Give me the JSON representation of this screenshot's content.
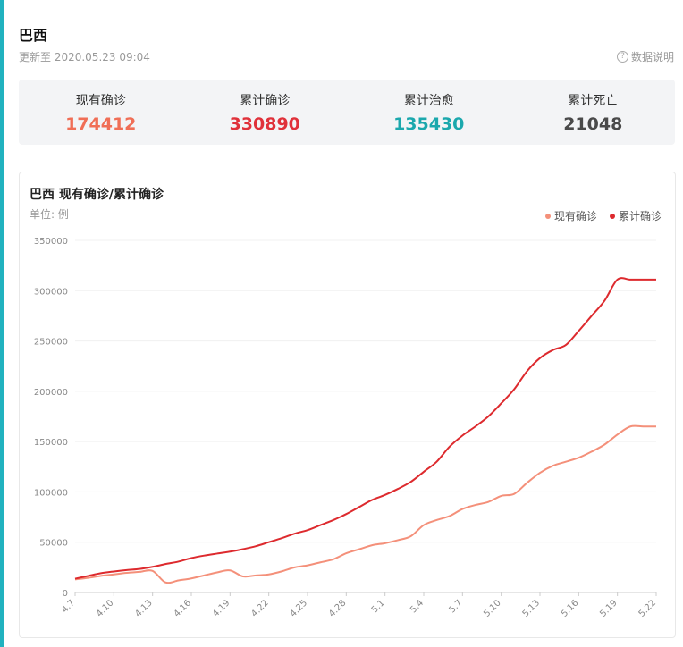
{
  "header": {
    "title": "巴西",
    "updated": "更新至 2020.05.23 09:04",
    "data_note": "数据说明",
    "data_note_icon": "question-circle-icon"
  },
  "stats": [
    {
      "label": "现有确诊",
      "value": "174412",
      "color": "#f06e56"
    },
    {
      "label": "累计确诊",
      "value": "330890",
      "color": "#e0313a"
    },
    {
      "label": "累计治愈",
      "value": "135430",
      "color": "#1ba8ad"
    },
    {
      "label": "累计死亡",
      "value": "21048",
      "color": "#4a4a4a"
    }
  ],
  "chart_title": "巴西 现有确诊/累计确诊",
  "unit": "单位: 例",
  "chart_data": {
    "type": "line",
    "title": "巴西 现有确诊/累计确诊",
    "ylabel": "单位: 例",
    "ylim": [
      0,
      350000
    ],
    "yticks": [
      "0",
      "50000",
      "100000",
      "150000",
      "200000",
      "250000",
      "300000",
      "350000"
    ],
    "grid": true,
    "legend_position": "top-right",
    "x": [
      "4.7",
      "4.8",
      "4.9",
      "4.10",
      "4.11",
      "4.12",
      "4.13",
      "4.14",
      "4.15",
      "4.16",
      "4.17",
      "4.18",
      "4.19",
      "4.20",
      "4.21",
      "4.22",
      "4.23",
      "4.24",
      "4.25",
      "4.26",
      "4.27",
      "4.28",
      "4.29",
      "4.30",
      "5.1",
      "5.2",
      "5.3",
      "5.4",
      "5.5",
      "5.6",
      "5.7",
      "5.8",
      "5.9",
      "5.10",
      "5.11",
      "5.12",
      "5.13",
      "5.14",
      "5.15",
      "5.16",
      "5.17",
      "5.18",
      "5.19",
      "5.20",
      "5.21",
      "5.22"
    ],
    "x_tick_labels": [
      "4.7",
      "4.10",
      "4.13",
      "4.16",
      "4.19",
      "4.22",
      "4.25",
      "4.28",
      "5.1",
      "5.4",
      "5.7",
      "5.10",
      "5.13",
      "5.16",
      "5.19",
      "5.22"
    ],
    "series": [
      {
        "name": "现有确诊",
        "color": "#f4907a",
        "values": [
          13000,
          14500,
          16500,
          18000,
          19500,
          20500,
          21500,
          10000,
          12000,
          14000,
          17000,
          20000,
          22000,
          16000,
          17000,
          18000,
          21000,
          25000,
          27000,
          30000,
          33000,
          39000,
          43000,
          47000,
          49000,
          52000,
          56000,
          67000,
          72000,
          76000,
          83000,
          87000,
          90000,
          96000,
          98000,
          109000,
          119000,
          126000,
          130000,
          134000,
          140000,
          147000,
          157000,
          165000,
          165000,
          165000
        ]
      },
      {
        "name": "累计确诊",
        "color": "#dd2a2e",
        "values": [
          13700,
          16500,
          19200,
          20900,
          22300,
          23400,
          25500,
          28300,
          30700,
          34200,
          36700,
          38700,
          40600,
          43100,
          46000,
          50000,
          54000,
          58500,
          62000,
          67000,
          72000,
          78000,
          85000,
          92000,
          97000,
          103000,
          110000,
          120000,
          130000,
          145000,
          156000,
          165000,
          175000,
          188000,
          202000,
          220000,
          233000,
          241000,
          246000,
          260000,
          275000,
          290000,
          311000,
          311000,
          311000,
          311000
        ]
      }
    ]
  }
}
